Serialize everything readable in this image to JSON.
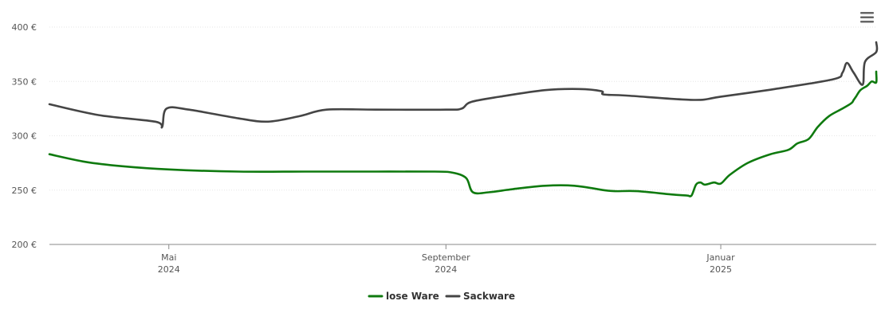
{
  "menu": {
    "icon": "hamburger-menu-icon"
  },
  "chart_data": {
    "type": "line",
    "title": "",
    "xlabel": "",
    "ylabel": "",
    "ylim": [
      200,
      400
    ],
    "xlim": [
      "2024-03-09",
      "2025-03-11"
    ],
    "grid": "horizontal",
    "legend_position": "bottom-center",
    "y_ticks": [
      {
        "value": 200,
        "label": "200 €"
      },
      {
        "value": 250,
        "label": "250 €"
      },
      {
        "value": 300,
        "label": "300 €"
      },
      {
        "value": 350,
        "label": "350 €"
      },
      {
        "value": 400,
        "label": "400 €"
      }
    ],
    "x_ticks": [
      {
        "date": "2024-05-01",
        "month": "Mai",
        "year": "2024"
      },
      {
        "date": "2024-09-01",
        "month": "September",
        "year": "2024"
      },
      {
        "date": "2025-01-01",
        "month": "Januar",
        "year": "2025"
      }
    ],
    "series": [
      {
        "name": "lose Ware",
        "color": "#0f7a0f",
        "points": [
          [
            "2024-03-09",
            283
          ],
          [
            "2024-03-25",
            276
          ],
          [
            "2024-04-10",
            272
          ],
          [
            "2024-05-01",
            269
          ],
          [
            "2024-06-01",
            267
          ],
          [
            "2024-07-01",
            267
          ],
          [
            "2024-08-01",
            267
          ],
          [
            "2024-08-27",
            267
          ],
          [
            "2024-09-04",
            266
          ],
          [
            "2024-09-10",
            261
          ],
          [
            "2024-09-13",
            248
          ],
          [
            "2024-09-20",
            248
          ],
          [
            "2024-10-01",
            251
          ],
          [
            "2024-10-15",
            254
          ],
          [
            "2024-10-28",
            254
          ],
          [
            "2024-11-10",
            250
          ],
          [
            "2024-11-15",
            249
          ],
          [
            "2024-11-25",
            249
          ],
          [
            "2024-12-10",
            246
          ],
          [
            "2024-12-17",
            245
          ],
          [
            "2024-12-19",
            245
          ],
          [
            "2024-12-21",
            255
          ],
          [
            "2024-12-23",
            257
          ],
          [
            "2024-12-25",
            255
          ],
          [
            "2024-12-29",
            257
          ],
          [
            "2025-01-01",
            256
          ],
          [
            "2025-01-05",
            264
          ],
          [
            "2025-01-13",
            275
          ],
          [
            "2025-01-23",
            283
          ],
          [
            "2025-01-31",
            287
          ],
          [
            "2025-02-04",
            293
          ],
          [
            "2025-02-09",
            297
          ],
          [
            "2025-02-13",
            308
          ],
          [
            "2025-02-18",
            318
          ],
          [
            "2025-02-24",
            325
          ],
          [
            "2025-02-28",
            330
          ],
          [
            "2025-03-01",
            333
          ],
          [
            "2025-03-02",
            336
          ],
          [
            "2025-03-04",
            342
          ],
          [
            "2025-03-07",
            346
          ],
          [
            "2025-03-09",
            350
          ],
          [
            "2025-03-14",
            349
          ],
          [
            "2025-03-16",
            358
          ],
          [
            "2025-03-24",
            359
          ]
        ]
      },
      {
        "name": "Sackware",
        "color": "#454545",
        "points": [
          [
            "2024-03-09",
            329
          ],
          [
            "2024-03-31",
            319
          ],
          [
            "2024-04-25",
            313
          ],
          [
            "2024-04-28",
            308
          ],
          [
            "2024-04-30",
            325
          ],
          [
            "2024-05-10",
            324
          ],
          [
            "2024-06-01",
            316
          ],
          [
            "2024-06-14",
            313
          ],
          [
            "2024-06-28",
            318
          ],
          [
            "2024-07-10",
            324
          ],
          [
            "2024-08-01",
            324
          ],
          [
            "2024-09-01",
            324
          ],
          [
            "2024-09-08",
            325
          ],
          [
            "2024-09-12",
            331
          ],
          [
            "2024-09-25",
            336
          ],
          [
            "2024-10-15",
            342
          ],
          [
            "2024-10-30",
            343
          ],
          [
            "2024-11-09",
            341
          ],
          [
            "2024-11-10",
            338
          ],
          [
            "2024-11-20",
            337
          ],
          [
            "2024-12-20",
            333
          ],
          [
            "2025-01-01",
            336
          ],
          [
            "2025-01-25",
            343
          ],
          [
            "2025-02-20",
            352
          ],
          [
            "2025-02-24",
            358
          ],
          [
            "2025-02-26",
            367
          ],
          [
            "2025-03-01",
            358
          ],
          [
            "2025-03-05",
            347
          ],
          [
            "2025-03-06",
            368
          ],
          [
            "2025-03-12",
            377
          ],
          [
            "2025-03-30",
            386
          ]
        ]
      }
    ]
  }
}
